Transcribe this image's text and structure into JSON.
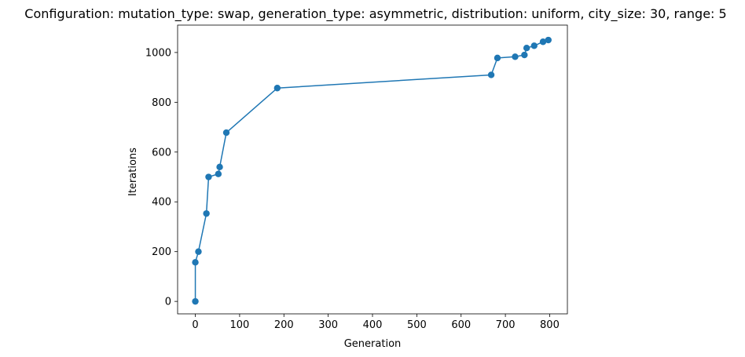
{
  "chart_data": {
    "type": "line",
    "title": "Configuration: mutation_type: swap, generation_type: asymmetric, distribution: uniform, city_size: 30, range: 5",
    "xlabel": "Generation",
    "ylabel": "Iterations",
    "xlim": [
      -40,
      840
    ],
    "ylim": [
      -50,
      1110
    ],
    "xticks": [
      0,
      100,
      200,
      300,
      400,
      500,
      600,
      700,
      800
    ],
    "yticks": [
      0,
      200,
      400,
      600,
      800,
      1000
    ],
    "grid": false,
    "legend": "none",
    "series": [
      {
        "color": "#1f77b4",
        "marker": "circle",
        "x": [
          0,
          0,
          7,
          25,
          30,
          52,
          55,
          70,
          185,
          668,
          682,
          722,
          743,
          748,
          765,
          785,
          797
        ],
        "y": [
          0,
          157,
          200,
          353,
          500,
          512,
          540,
          678,
          857,
          910,
          978,
          983,
          990,
          1018,
          1027,
          1043,
          1050
        ]
      }
    ]
  }
}
